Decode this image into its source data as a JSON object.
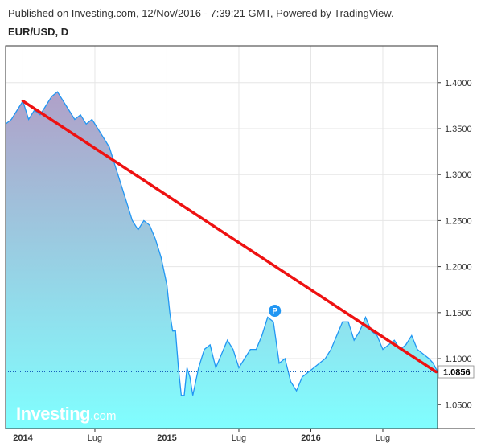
{
  "header": {
    "publish_line": "Published on Investing.com, 12/Nov/2016 - 7:39:21 GMT, Powered by TradingView.",
    "symbol_line": "EUR/USD, D"
  },
  "logo": {
    "main": "Investing",
    "suffix": ".com"
  },
  "colors": {
    "price_line": "#2196f3",
    "area_top": "#b0a0c8",
    "area_bottom": "#80ffff",
    "trendline": "#ee1111",
    "last_price_line": "#1560bd",
    "grid": "#e6e6e6",
    "marker": "#2196f3"
  },
  "chart_data": {
    "type": "area",
    "title": "EUR/USD, D",
    "xlabel": "",
    "ylabel": "",
    "x_ticks": [
      {
        "label": "2014",
        "value": 2014.0,
        "major": true
      },
      {
        "label": "Lug",
        "value": 2014.5,
        "major": false
      },
      {
        "label": "2015",
        "value": 2015.0,
        "major": true
      },
      {
        "label": "Lug",
        "value": 2015.5,
        "major": false
      },
      {
        "label": "2016",
        "value": 2016.0,
        "major": true
      },
      {
        "label": "Lug",
        "value": 2016.5,
        "major": false
      }
    ],
    "y_ticks": [
      1.05,
      1.1,
      1.15,
      1.2,
      1.25,
      1.3,
      1.35,
      1.4
    ],
    "y_tick_labels": [
      "1.0500",
      "1.1000",
      "1.1500",
      "1.2000",
      "1.2500",
      "1.3000",
      "1.3500",
      "1.4000"
    ],
    "xlim": [
      2013.88,
      2016.88
    ],
    "ylim": [
      1.024,
      1.44
    ],
    "grid": true,
    "last_value": 1.0856,
    "last_value_label": "1.0856",
    "marker": {
      "label": "P",
      "x": 2015.75,
      "y": 1.152
    },
    "trendline": {
      "x1": 2014.0,
      "y1": 1.38,
      "x2": 2016.87,
      "y2": 1.0856
    },
    "x": [
      2013.88,
      2013.92,
      2013.96,
      2014.0,
      2014.04,
      2014.08,
      2014.12,
      2014.16,
      2014.2,
      2014.24,
      2014.28,
      2014.32,
      2014.36,
      2014.4,
      2014.44,
      2014.48,
      2014.52,
      2014.56,
      2014.6,
      2014.64,
      2014.68,
      2014.72,
      2014.76,
      2014.8,
      2014.84,
      2014.88,
      2014.92,
      2014.96,
      2015.0,
      2015.02,
      2015.04,
      2015.06,
      2015.08,
      2015.1,
      2015.12,
      2015.14,
      2015.16,
      2015.18,
      2015.22,
      2015.26,
      2015.3,
      2015.34,
      2015.38,
      2015.42,
      2015.46,
      2015.5,
      2015.54,
      2015.58,
      2015.62,
      2015.66,
      2015.7,
      2015.74,
      2015.78,
      2015.82,
      2015.86,
      2015.9,
      2015.94,
      2015.98,
      2016.02,
      2016.06,
      2016.1,
      2016.14,
      2016.18,
      2016.22,
      2016.26,
      2016.3,
      2016.34,
      2016.38,
      2016.42,
      2016.46,
      2016.5,
      2016.54,
      2016.58,
      2016.62,
      2016.66,
      2016.7,
      2016.74,
      2016.78,
      2016.82,
      2016.85,
      2016.88
    ],
    "y": [
      1.355,
      1.36,
      1.37,
      1.38,
      1.36,
      1.37,
      1.365,
      1.375,
      1.385,
      1.39,
      1.38,
      1.37,
      1.36,
      1.365,
      1.355,
      1.36,
      1.35,
      1.34,
      1.33,
      1.31,
      1.29,
      1.27,
      1.25,
      1.24,
      1.25,
      1.245,
      1.23,
      1.21,
      1.18,
      1.15,
      1.13,
      1.13,
      1.09,
      1.06,
      1.06,
      1.09,
      1.08,
      1.06,
      1.09,
      1.11,
      1.115,
      1.09,
      1.105,
      1.12,
      1.11,
      1.09,
      1.1,
      1.11,
      1.11,
      1.125,
      1.145,
      1.14,
      1.095,
      1.1,
      1.075,
      1.065,
      1.08,
      1.085,
      1.09,
      1.095,
      1.1,
      1.11,
      1.125,
      1.14,
      1.14,
      1.12,
      1.13,
      1.145,
      1.13,
      1.125,
      1.11,
      1.115,
      1.12,
      1.11,
      1.115,
      1.125,
      1.11,
      1.105,
      1.1,
      1.095,
      1.0856
    ]
  }
}
